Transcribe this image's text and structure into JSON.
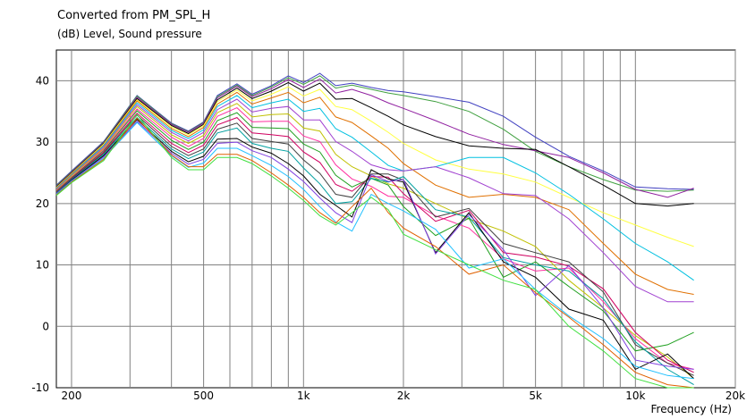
{
  "header": {
    "title": "Converted from PM_SPL_H",
    "subtitle": "(dB)  Level, Sound pressure"
  },
  "chart_data": {
    "type": "line",
    "title": "Converted from PM_SPL_H",
    "ylabel": "(dB)  Level, Sound pressure",
    "xlabel": "Frequency  (Hz)",
    "x_scale": "log",
    "xlim": [
      180,
      20000
    ],
    "ylim": [
      -10,
      45
    ],
    "grid": true,
    "y_ticks": [
      -10,
      0,
      10,
      20,
      30,
      40
    ],
    "y_tick_labels": [
      "-10",
      "0",
      "10",
      "20",
      "30",
      "40"
    ],
    "x_ticks": [
      200,
      500,
      1000,
      2000,
      5000,
      10000,
      20000
    ],
    "x_tick_labels": [
      "200",
      "500",
      "1k",
      "2k",
      "5k",
      "10k",
      "20k"
    ],
    "x": [
      180,
      200,
      250,
      315,
      400,
      450,
      500,
      550,
      630,
      700,
      800,
      900,
      1000,
      1120,
      1250,
      1400,
      1600,
      1800,
      2000,
      2500,
      3150,
      4000,
      5000,
      6300,
      8000,
      10000,
      12500,
      15000
    ],
    "series": [
      {
        "color": "#4040c0",
        "values": [
          23,
          25.3,
          30.1,
          37.6,
          33.1,
          31.8,
          33.3,
          37.6,
          39.5,
          37.8,
          39.2,
          40.8,
          39.7,
          41.2,
          39.2,
          39.6,
          38.9,
          38.4,
          38.2,
          37.4,
          36.5,
          34.2,
          30.8,
          27.7,
          25.3,
          22.7,
          22.4,
          22.3
        ]
      },
      {
        "color": "#40a040",
        "values": [
          22.9,
          25.2,
          30.0,
          37.5,
          33.0,
          31.7,
          33.2,
          37.4,
          39.3,
          37.6,
          39.0,
          40.5,
          39.4,
          40.8,
          38.8,
          39.3,
          38.6,
          38.0,
          37.6,
          36.6,
          35.0,
          32.1,
          28.5,
          26.0,
          23.9,
          22.2,
          22.0,
          22.2
        ]
      },
      {
        "color": "#9020a0",
        "values": [
          22.8,
          25.1,
          29.9,
          37.3,
          32.9,
          31.6,
          33.1,
          37.2,
          39.1,
          37.4,
          38.7,
          40.2,
          38.9,
          40.3,
          38.0,
          38.6,
          37.6,
          36.4,
          35.5,
          33.5,
          31.3,
          29.6,
          28.6,
          27.5,
          25.0,
          22.3,
          21.0,
          22.5
        ]
      },
      {
        "color": "#000000",
        "values": [
          22.7,
          25.0,
          29.8,
          37.1,
          32.7,
          31.4,
          32.9,
          36.9,
          38.8,
          37.1,
          38.3,
          39.7,
          38.3,
          39.6,
          37.0,
          37.1,
          35.6,
          34.2,
          32.8,
          30.9,
          29.4,
          29.0,
          28.8,
          26.0,
          23.0,
          20.0,
          19.6,
          20.0
        ]
      },
      {
        "color": "#ffff40",
        "values": [
          22.6,
          24.9,
          29.7,
          36.9,
          32.5,
          31.2,
          32.7,
          36.6,
          38.5,
          36.7,
          37.8,
          39.0,
          37.5,
          38.6,
          35.8,
          35.3,
          33.4,
          31.6,
          29.8,
          27.1,
          25.6,
          24.8,
          23.5,
          21.0,
          18.5,
          16.5,
          14.5,
          13.0
        ]
      },
      {
        "color": "#e07000",
        "values": [
          22.5,
          24.8,
          29.5,
          36.7,
          32.2,
          30.9,
          32.4,
          36.2,
          38.1,
          36.2,
          37.2,
          38.1,
          36.4,
          37.3,
          34.1,
          33.2,
          31.0,
          29.0,
          26.5,
          23.0,
          21.0,
          21.5,
          21.0,
          19.0,
          13.5,
          8.5,
          6.0,
          5.2
        ]
      },
      {
        "color": "#00c0e0",
        "values": [
          22.4,
          24.7,
          29.4,
          36.4,
          31.9,
          30.6,
          32.0,
          35.8,
          37.6,
          35.6,
          36.4,
          37.0,
          35.0,
          35.5,
          32.2,
          30.8,
          28.4,
          26.2,
          25.3,
          26.0,
          27.5,
          27.5,
          25.0,
          21.5,
          17.5,
          13.5,
          10.5,
          7.5
        ]
      },
      {
        "color": "#a040d0",
        "values": [
          22.3,
          24.6,
          29.2,
          36.1,
          31.6,
          30.2,
          31.6,
          35.3,
          37.0,
          34.9,
          35.5,
          35.8,
          33.6,
          33.6,
          30.1,
          28.5,
          26.3,
          25.5,
          25.3,
          26.0,
          24.2,
          21.6,
          21.3,
          17.5,
          12.0,
          6.5,
          4.0,
          4.0
        ]
      },
      {
        "color": "#c0c000",
        "values": [
          22.2,
          24.5,
          29.0,
          35.8,
          31.2,
          29.8,
          31.1,
          34.8,
          36.3,
          34.1,
          34.5,
          34.6,
          32.3,
          31.8,
          28.0,
          26.0,
          24.5,
          23.2,
          22.5,
          20.0,
          17.5,
          15.5,
          13.0,
          7.5,
          3.0,
          -1.5,
          -5.0,
          -8.5
        ]
      },
      {
        "color": "#ff30a0",
        "values": [
          22.1,
          24.3,
          28.8,
          35.4,
          30.8,
          29.3,
          30.6,
          34.2,
          35.6,
          33.3,
          33.4,
          33.4,
          31.0,
          30.1,
          26.3,
          24.0,
          22.8,
          21.2,
          21.0,
          18.0,
          16.0,
          11.0,
          9.0,
          9.5,
          4.0,
          -2.0,
          -6.0,
          -7.0
        ]
      },
      {
        "color": "#20a020",
        "values": [
          22.0,
          24.2,
          28.6,
          35.1,
          30.3,
          28.8,
          30.0,
          33.5,
          34.8,
          32.4,
          32.3,
          32.2,
          29.7,
          28.4,
          24.6,
          22.7,
          24.1,
          23.0,
          19.5,
          14.8,
          17.6,
          8.0,
          10.5,
          6.5,
          2.5,
          -4.0,
          -3.0,
          -1.0
        ]
      },
      {
        "color": "#d00060",
        "values": [
          21.9,
          24.1,
          28.4,
          34.7,
          29.8,
          28.3,
          29.5,
          32.8,
          34.0,
          31.5,
          31.2,
          30.9,
          28.4,
          26.7,
          23.1,
          22.0,
          24.4,
          24.3,
          21.6,
          17.1,
          18.9,
          12.0,
          11.3,
          9.8,
          6.1,
          -1.0,
          -5.5,
          -7.5
        ]
      },
      {
        "color": "#404040",
        "values": [
          21.8,
          24.0,
          28.2,
          34.4,
          29.3,
          27.8,
          28.9,
          32.1,
          33.1,
          30.6,
          30.1,
          29.7,
          27.1,
          24.9,
          21.5,
          21.0,
          24.8,
          24.8,
          23.8,
          17.8,
          19.2,
          13.5,
          12.0,
          10.5,
          5.6,
          -3.0,
          -6.0,
          -8.0
        ]
      },
      {
        "color": "#00a0a0",
        "values": [
          21.7,
          23.9,
          28.0,
          34.0,
          28.9,
          27.3,
          28.4,
          31.5,
          32.3,
          29.8,
          29.0,
          28.5,
          25.8,
          23.2,
          20.0,
          20.3,
          24.1,
          23.5,
          24.4,
          19.0,
          17.8,
          11.2,
          10.0,
          9.0,
          4.5,
          -2.5,
          -7.0,
          -9.5
        ]
      },
      {
        "color": "#000000",
        "values": [
          21.6,
          23.8,
          27.8,
          33.7,
          28.5,
          26.8,
          27.7,
          30.5,
          30.6,
          29.2,
          28.2,
          26.5,
          24.5,
          21.5,
          19.7,
          17.8,
          25.5,
          24.0,
          23.5,
          12.0,
          18.5,
          10.5,
          8.0,
          2.8,
          1.0,
          -7.0,
          -4.5,
          -8.5
        ]
      },
      {
        "color": "#8040e0",
        "values": [
          21.6,
          23.7,
          27.6,
          33.4,
          28.2,
          26.4,
          27.2,
          29.8,
          30.0,
          28.6,
          27.5,
          25.6,
          23.6,
          20.9,
          18.5,
          16.9,
          24.7,
          23.6,
          23.9,
          11.8,
          18.2,
          12.5,
          5.0,
          9.9,
          3.0,
          -5.5,
          -6.5,
          -7.0
        ]
      },
      {
        "color": "#20c0ff",
        "values": [
          21.5,
          23.6,
          27.4,
          33.2,
          27.8,
          25.9,
          26.6,
          29.0,
          29.0,
          27.8,
          26.2,
          24.4,
          22.3,
          19.5,
          17.0,
          15.5,
          21.5,
          20.0,
          18.8,
          15.8,
          9.5,
          11.0,
          6.0,
          1.7,
          -2.0,
          -6.5,
          -8.0,
          -8.5
        ]
      },
      {
        "color": "#e06000",
        "values": [
          21.4,
          23.5,
          27.2,
          33.9,
          27.9,
          26.0,
          26.0,
          28.0,
          28.0,
          27.0,
          25.0,
          23.0,
          21.0,
          18.5,
          16.8,
          19.5,
          22.5,
          18.5,
          16.0,
          13.0,
          8.5,
          10.0,
          5.5,
          1.5,
          -3.0,
          -7.5,
          -9.5,
          -10.0
        ]
      },
      {
        "color": "#40e040",
        "values": [
          21.3,
          23.4,
          27.0,
          34.5,
          27.5,
          25.5,
          25.5,
          27.5,
          27.5,
          26.5,
          24.5,
          22.5,
          20.5,
          18.0,
          16.5,
          18.5,
          21.0,
          19.0,
          15.0,
          12.5,
          10.0,
          7.5,
          6.0,
          0.0,
          -4.0,
          -8.5,
          -10.5,
          -11.0
        ]
      }
    ]
  }
}
